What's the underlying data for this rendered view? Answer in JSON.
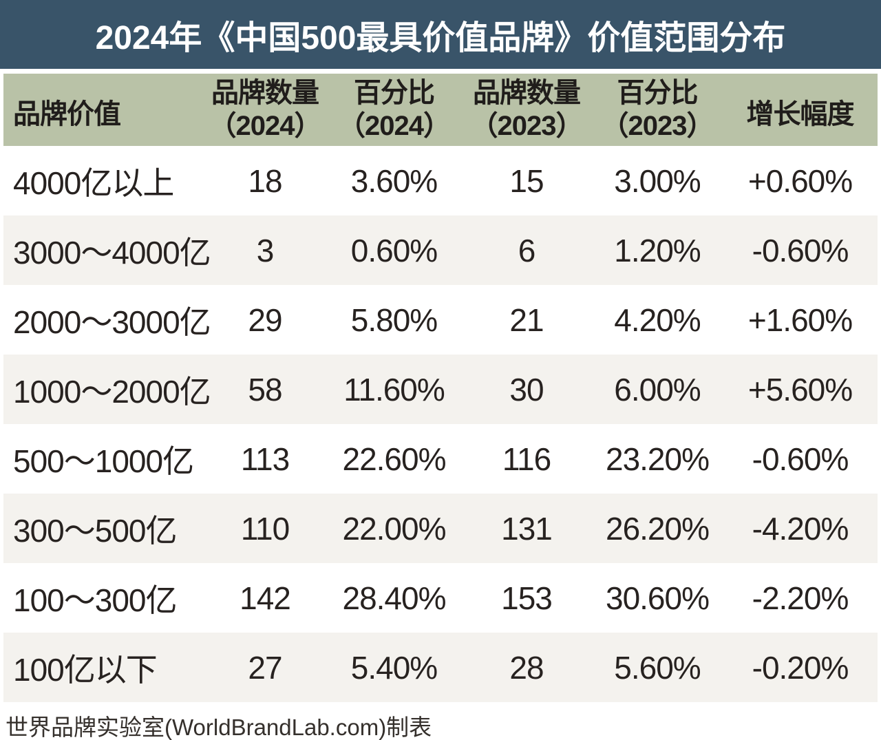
{
  "title": "2024年《中国500最具价值品牌》价值范围分布",
  "colors": {
    "title_bar_bg": "#395469",
    "title_text": "#ffffff",
    "header_bg": "#b9c2a7",
    "row_alt_bg": "#f4f2ee",
    "row_bg": "#ffffff",
    "body_text": "#272220"
  },
  "table": {
    "headers": [
      {
        "line1": "品牌价值",
        "line2": ""
      },
      {
        "line1": "品牌数量",
        "line2": "（2024）"
      },
      {
        "line1": "百分比",
        "line2": "（2024）"
      },
      {
        "line1": "品牌数量",
        "line2": "（2023）"
      },
      {
        "line1": "百分比",
        "line2": "（2023）"
      },
      {
        "line1": "增长幅度",
        "line2": ""
      }
    ],
    "rows": [
      [
        "4000亿以上",
        "18",
        "3.60%",
        "15",
        "3.00%",
        "+0.60%"
      ],
      [
        "3000～4000亿",
        "3",
        "0.60%",
        "6",
        "1.20%",
        "-0.60%"
      ],
      [
        "2000～3000亿",
        "29",
        "5.80%",
        "21",
        "4.20%",
        "+1.60%"
      ],
      [
        "1000～2000亿",
        "58",
        "11.60%",
        "30",
        "6.00%",
        "+5.60%"
      ],
      [
        "500～1000亿",
        "113",
        "22.60%",
        "116",
        "23.20%",
        "-0.60%"
      ],
      [
        "300～500亿",
        "110",
        "22.00%",
        "131",
        "26.20%",
        "-4.20%"
      ],
      [
        "100～300亿",
        "142",
        "28.40%",
        "153",
        "30.60%",
        "-2.20%"
      ],
      [
        "100亿以下",
        "27",
        "5.40%",
        "28",
        "5.60%",
        "-0.20%"
      ]
    ]
  },
  "footer": {
    "credit": "世界品牌实验室(WorldBrandLab.com)制表"
  },
  "chart_data": {
    "type": "table",
    "title": "2024年《中国500最具价值品牌》价值范围分布",
    "columns": [
      "品牌价值",
      "品牌数量（2024）",
      "百分比（2024）",
      "品牌数量（2023）",
      "百分比（2023）",
      "增长幅度"
    ],
    "categories": [
      "4000亿以上",
      "3000～4000亿",
      "2000～3000亿",
      "1000～2000亿",
      "500～1000亿",
      "300～500亿",
      "100～300亿",
      "100亿以下"
    ],
    "series": [
      {
        "name": "品牌数量（2024）",
        "values": [
          18,
          3,
          29,
          58,
          113,
          110,
          142,
          27
        ]
      },
      {
        "name": "百分比（2024）",
        "values": [
          3.6,
          0.6,
          5.8,
          11.6,
          22.6,
          22.0,
          28.4,
          5.4
        ]
      },
      {
        "name": "品牌数量（2023）",
        "values": [
          15,
          6,
          21,
          30,
          116,
          131,
          153,
          28
        ]
      },
      {
        "name": "百分比（2023）",
        "values": [
          3.0,
          1.2,
          4.2,
          6.0,
          23.2,
          26.2,
          30.6,
          5.6
        ]
      },
      {
        "name": "增长幅度",
        "values": [
          0.6,
          -0.6,
          1.6,
          5.6,
          -0.6,
          -4.2,
          -2.2,
          -0.2
        ]
      }
    ],
    "source_credit": "世界品牌实验室(WorldBrandLab.com)制表"
  }
}
